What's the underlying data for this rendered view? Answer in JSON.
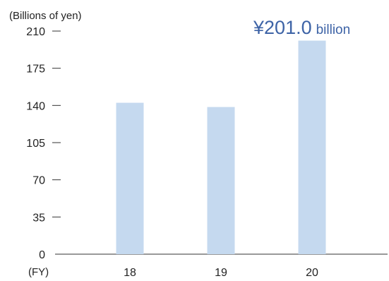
{
  "chart_data": {
    "type": "bar",
    "y_unit_label": "(Billions of yen)",
    "x_unit_label": "(FY)",
    "categories": [
      "18",
      "19",
      "20"
    ],
    "values": [
      142.5,
      138.5,
      201.0
    ],
    "ylim": [
      0,
      210
    ],
    "y_ticks": [
      "0",
      "35",
      "70",
      "105",
      "140",
      "175",
      "210"
    ],
    "y_tick_values": [
      0,
      35,
      70,
      105,
      140,
      175,
      210
    ],
    "grid": false,
    "bar_color": "#c5d9ef",
    "axis_color": "#333333",
    "callout": {
      "currency": "¥",
      "amount": "201.0",
      "unit": "billion",
      "color": "#3d63a6"
    }
  }
}
